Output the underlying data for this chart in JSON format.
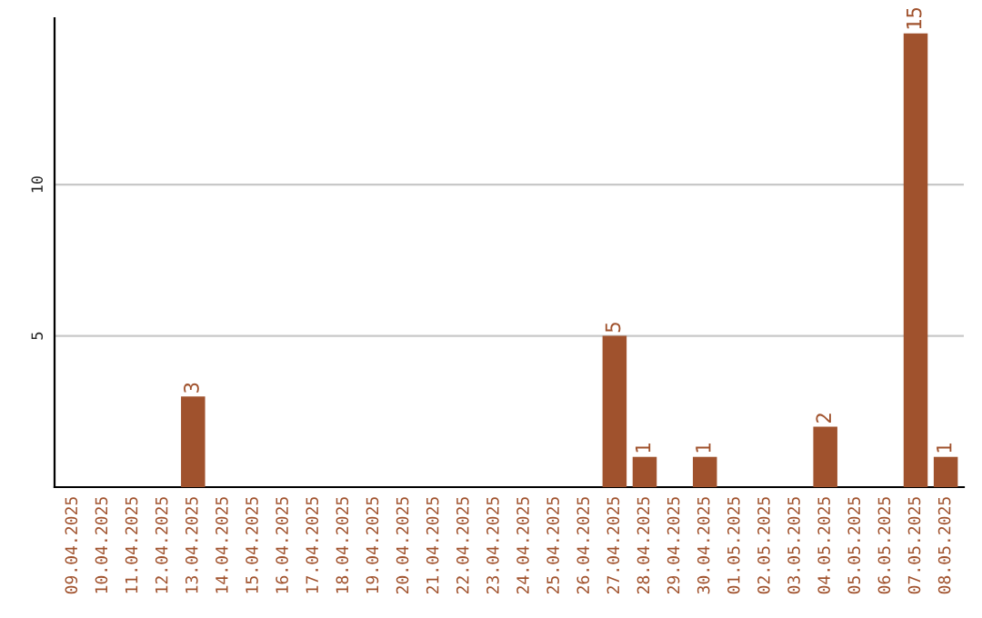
{
  "chart_data": {
    "type": "bar",
    "categories": [
      "09.04.2025",
      "10.04.2025",
      "11.04.2025",
      "12.04.2025",
      "13.04.2025",
      "14.04.2025",
      "15.04.2025",
      "16.04.2025",
      "17.04.2025",
      "18.04.2025",
      "19.04.2025",
      "20.04.2025",
      "21.04.2025",
      "22.04.2025",
      "23.04.2025",
      "24.04.2025",
      "25.04.2025",
      "26.04.2025",
      "27.04.2025",
      "28.04.2025",
      "29.04.2025",
      "30.04.2025",
      "01.05.2025",
      "02.05.2025",
      "03.05.2025",
      "04.05.2025",
      "05.05.2025",
      "06.05.2025",
      "07.05.2025",
      "08.05.2025"
    ],
    "values": [
      0,
      0,
      0,
      0,
      3,
      0,
      0,
      0,
      0,
      0,
      0,
      0,
      0,
      0,
      0,
      0,
      0,
      0,
      5,
      1,
      0,
      1,
      0,
      0,
      0,
      2,
      0,
      0,
      15,
      1
    ],
    "value_labels": [
      null,
      null,
      null,
      null,
      "3",
      null,
      null,
      null,
      null,
      null,
      null,
      null,
      null,
      null,
      null,
      null,
      null,
      null,
      "5",
      "1",
      null,
      "1",
      null,
      null,
      null,
      "2",
      null,
      null,
      "15",
      "1"
    ],
    "color": "#a0522d",
    "ylim": [
      0,
      15.5
    ],
    "yticks": [
      5,
      10
    ],
    "grid": "y"
  }
}
